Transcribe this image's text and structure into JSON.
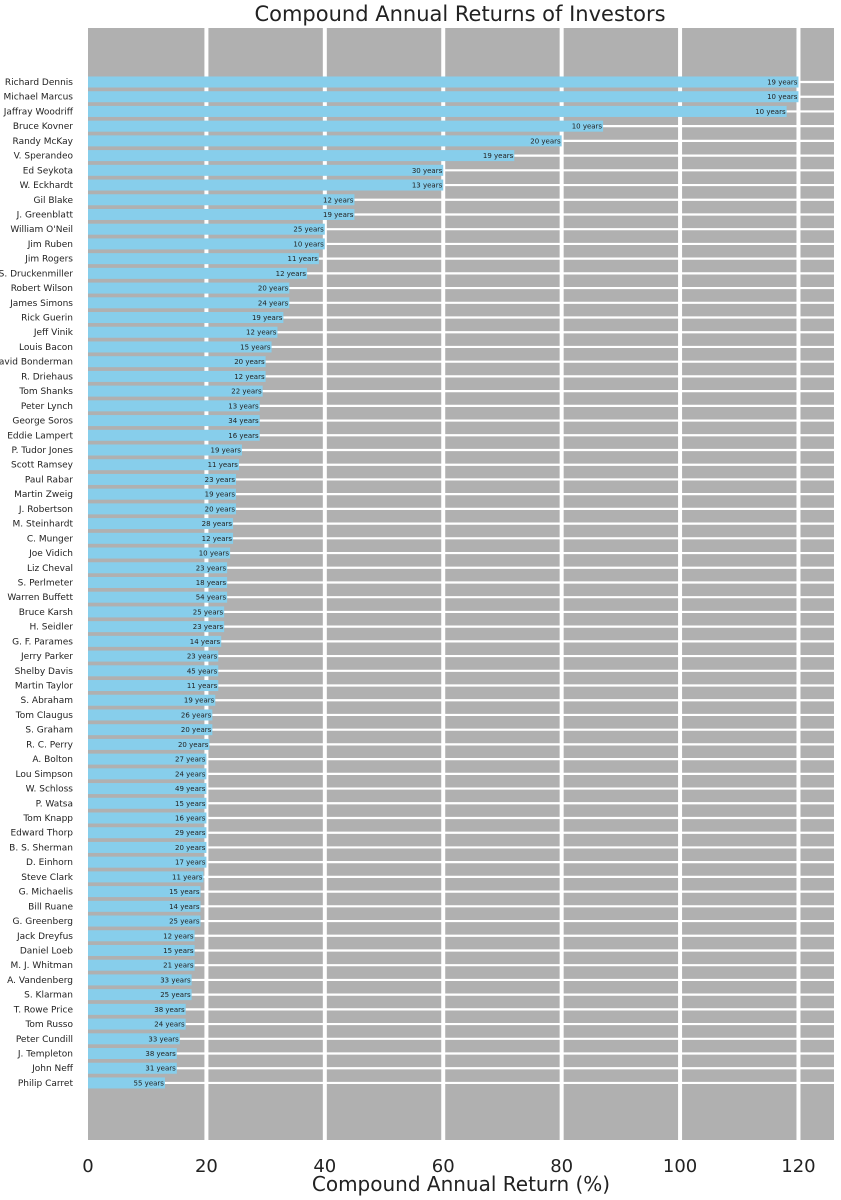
{
  "chart_data": {
    "type": "bar",
    "orientation": "horizontal",
    "title": "Compound Annual Returns of Investors",
    "xlabel": "Compound Annual Return (%)",
    "ylabel": "",
    "xlim": [
      0,
      126
    ],
    "xticks": [
      "0",
      "20",
      "40",
      "60",
      "80",
      "100",
      "120"
    ],
    "grid": true,
    "colors": {
      "bar": "#87ceeb",
      "background": "#b0b0b0",
      "grid": "#ffffff"
    },
    "categories": [
      "Richard Dennis",
      "Michael Marcus",
      "Jaffray Woodriff",
      "Bruce Kovner",
      "Randy McKay",
      "V. Sperandeo",
      "Ed Seykota",
      "W. Eckhardt",
      "Gil Blake",
      "J. Greenblatt",
      "William O'Neil",
      "Jim Ruben",
      "Jim Rogers",
      "S. Druckenmiller",
      "Robert Wilson",
      "James Simons",
      "Rick Guerin",
      "Jeff Vinik",
      "Louis Bacon",
      "David Bonderman",
      "R. Driehaus",
      "Tom Shanks",
      "Peter Lynch",
      "George Soros",
      "Eddie Lampert",
      "P. Tudor Jones",
      "Scott Ramsey",
      "Paul Rabar",
      "Martin Zweig",
      "J. Robertson",
      "M. Steinhardt",
      "C. Munger",
      "Joe Vidich",
      "Liz Cheval",
      "S. Perlmeter",
      "Warren Buffett",
      "Bruce Karsh",
      "H. Seidler",
      "G. F. Parames",
      "Jerry Parker",
      "Shelby Davis",
      "Martin Taylor",
      "S. Abraham",
      "Tom Claugus",
      "S. Graham",
      "R. C. Perry",
      "A. Bolton",
      "Lou Simpson",
      "W. Schloss",
      "P. Watsa",
      "Tom Knapp",
      "Edward Thorp",
      "B. S. Sherman",
      "D. Einhorn",
      "Steve Clark",
      "G. Michaelis",
      "Bill Ruane",
      "G. Greenberg",
      "Jack Dreyfus",
      "Daniel Loeb",
      "M. J. Whitman",
      "A. Vandenberg",
      "S. Klarman",
      "T. Rowe Price",
      "Tom Russo",
      "Peter Cundill",
      "J. Templeton",
      "John Neff",
      "Philip Carret"
    ],
    "values": [
      120,
      120,
      118,
      87,
      80,
      72,
      60,
      60,
      45,
      45,
      40,
      40,
      39,
      37,
      34,
      34,
      33,
      32,
      31,
      30,
      30,
      29.5,
      29,
      29,
      29,
      26,
      25.5,
      25,
      25,
      25,
      24.5,
      24.5,
      24,
      23.5,
      23.5,
      23.5,
      23,
      23,
      22.5,
      22,
      22,
      22,
      21.5,
      21,
      21,
      20.5,
      20,
      20,
      20,
      20,
      20,
      20,
      20,
      20,
      19.5,
      19,
      19,
      19,
      18,
      18,
      18,
      17.5,
      17.5,
      16.5,
      16.5,
      15.5,
      15,
      15,
      13
    ],
    "annotations": [
      "19 years",
      "10 years",
      "10 years",
      "10 years",
      "20 years",
      "19 years",
      "30 years",
      "13 years",
      "12 years",
      "19 years",
      "25 years",
      "10 years",
      "11 years",
      "12 years",
      "20 years",
      "24 years",
      "19 years",
      "12 years",
      "15 years",
      "20 years",
      "12 years",
      "22 years",
      "13 years",
      "34 years",
      "16 years",
      "19 years",
      "11 years",
      "23 years",
      "19 years",
      "20 years",
      "28 years",
      "12 years",
      "10 years",
      "23 years",
      "18 years",
      "54 years",
      "25 years",
      "23 years",
      "14 years",
      "23 years",
      "45 years",
      "11 years",
      "19 years",
      "26 years",
      "20 years",
      "20 years",
      "27 years",
      "24 years",
      "49 years",
      "15 years",
      "16 years",
      "29 years",
      "20 years",
      "17 years",
      "11 years",
      "15 years",
      "14 years",
      "25 years",
      "12 years",
      "15 years",
      "21 years",
      "33 years",
      "25 years",
      "38 years",
      "24 years",
      "33 years",
      "38 years",
      "31 years",
      "55 years"
    ]
  }
}
